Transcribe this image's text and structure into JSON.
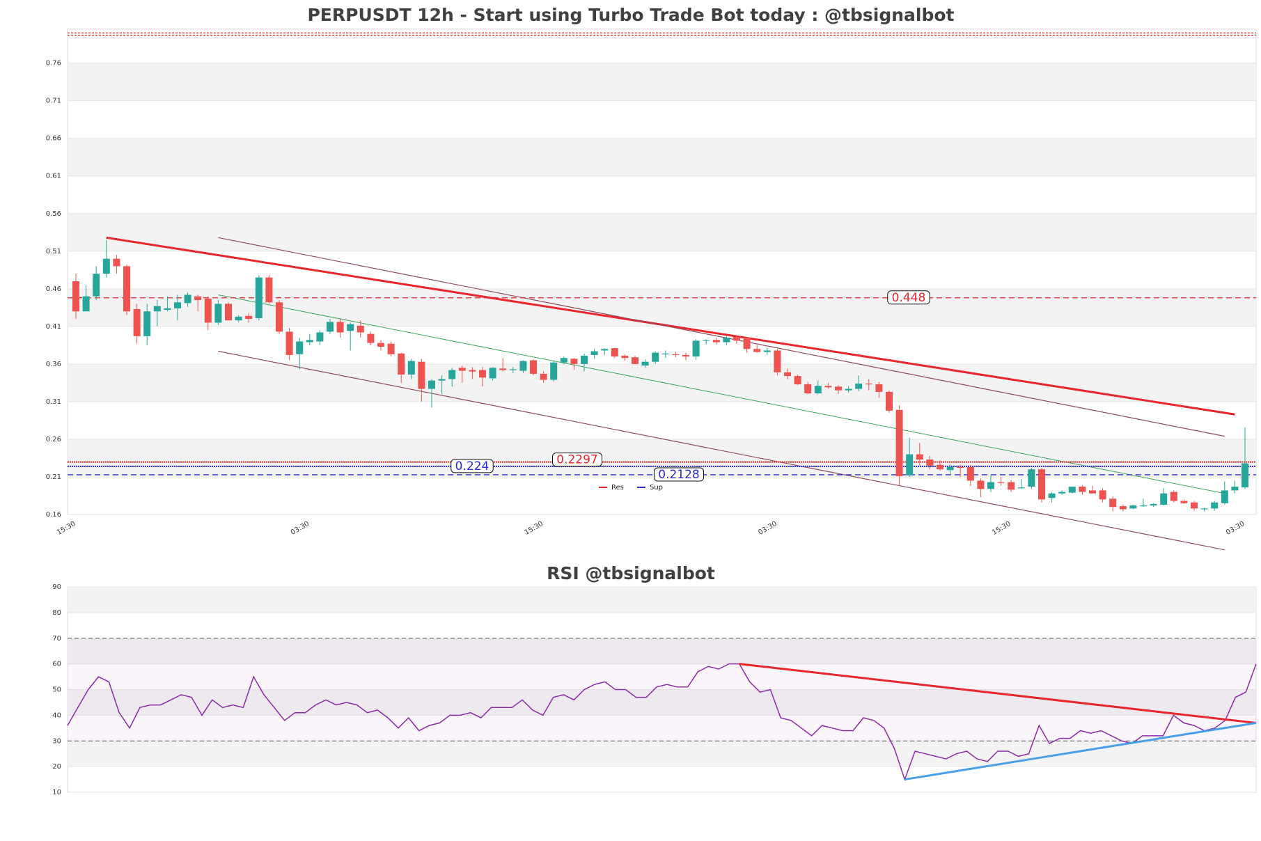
{
  "colors": {
    "bull": "#26a69a",
    "bear": "#ef5350",
    "resistance": "#e8262b",
    "support": "#2b2bd6",
    "rsi_line": "#8b2aa6",
    "rsi_support_trend": "#4aa0e8",
    "channel": "#8b4a5a",
    "mid_channel": "#3aa35a",
    "band": "#f3f3f3"
  },
  "chart_data": [
    {
      "type": "candlestick",
      "title": "PERPUSDT 12h - Start using Turbo Trade Bot today : @tbsignalbot",
      "ylim": [
        0.16,
        0.805
      ],
      "yticks": [
        "0.16",
        "0.21",
        "0.26",
        "0.31",
        "0.36",
        "0.41",
        "0.46",
        "0.51",
        "0.56",
        "0.61",
        "0.66",
        "0.71",
        "0.76"
      ],
      "xticks": [
        "15:30",
        "03:30",
        "15:30",
        "03:30",
        "15:30",
        "03:30"
      ],
      "xtick_index": [
        0,
        23,
        46,
        69,
        92,
        115
      ],
      "candles": [
        [
          0.47,
          0.48,
          0.42,
          0.43
        ],
        [
          0.43,
          0.465,
          0.43,
          0.45
        ],
        [
          0.45,
          0.49,
          0.445,
          0.48
        ],
        [
          0.48,
          0.525,
          0.475,
          0.5
        ],
        [
          0.5,
          0.505,
          0.48,
          0.49
        ],
        [
          0.49,
          0.492,
          0.425,
          0.43
        ],
        [
          0.433,
          0.44,
          0.387,
          0.397
        ],
        [
          0.397,
          0.44,
          0.385,
          0.43
        ],
        [
          0.43,
          0.445,
          0.41,
          0.437
        ],
        [
          0.432,
          0.45,
          0.43,
          0.434
        ],
        [
          0.434,
          0.452,
          0.418,
          0.442
        ],
        [
          0.441,
          0.455,
          0.436,
          0.452
        ],
        [
          0.45,
          0.452,
          0.43,
          0.445
        ],
        [
          0.447,
          0.45,
          0.405,
          0.415
        ],
        [
          0.415,
          0.445,
          0.412,
          0.44
        ],
        [
          0.44,
          0.442,
          0.418,
          0.418
        ],
        [
          0.418,
          0.425,
          0.416,
          0.423
        ],
        [
          0.424,
          0.428,
          0.415,
          0.42
        ],
        [
          0.421,
          0.478,
          0.418,
          0.475
        ],
        [
          0.475,
          0.478,
          0.44,
          0.442
        ],
        [
          0.442,
          0.445,
          0.4,
          0.403
        ],
        [
          0.403,
          0.408,
          0.365,
          0.372
        ],
        [
          0.373,
          0.395,
          0.353,
          0.39
        ],
        [
          0.389,
          0.4,
          0.385,
          0.392
        ],
        [
          0.39,
          0.405,
          0.385,
          0.402
        ],
        [
          0.403,
          0.42,
          0.4,
          0.416
        ],
        [
          0.416,
          0.42,
          0.395,
          0.402
        ],
        [
          0.404,
          0.415,
          0.378,
          0.413
        ],
        [
          0.411,
          0.418,
          0.395,
          0.402
        ],
        [
          0.4,
          0.403,
          0.385,
          0.388
        ],
        [
          0.388,
          0.392,
          0.378,
          0.383
        ],
        [
          0.387,
          0.39,
          0.37,
          0.373
        ],
        [
          0.374,
          0.375,
          0.335,
          0.346
        ],
        [
          0.346,
          0.367,
          0.34,
          0.364
        ],
        [
          0.363,
          0.367,
          0.31,
          0.327
        ],
        [
          0.327,
          0.34,
          0.302,
          0.338
        ],
        [
          0.338,
          0.345,
          0.32,
          0.34
        ],
        [
          0.34,
          0.355,
          0.33,
          0.352
        ],
        [
          0.355,
          0.358,
          0.335,
          0.351
        ],
        [
          0.352,
          0.356,
          0.34,
          0.35
        ],
        [
          0.352,
          0.356,
          0.33,
          0.342
        ],
        [
          0.341,
          0.356,
          0.338,
          0.355
        ],
        [
          0.354,
          0.368,
          0.35,
          0.352
        ],
        [
          0.352,
          0.356,
          0.348,
          0.353
        ],
        [
          0.351,
          0.365,
          0.348,
          0.364
        ],
        [
          0.365,
          0.366,
          0.345,
          0.347
        ],
        [
          0.347,
          0.35,
          0.335,
          0.339
        ],
        [
          0.339,
          0.365,
          0.337,
          0.362
        ],
        [
          0.362,
          0.37,
          0.36,
          0.368
        ],
        [
          0.367,
          0.368,
          0.352,
          0.36
        ],
        [
          0.36,
          0.374,
          0.35,
          0.371
        ],
        [
          0.372,
          0.38,
          0.367,
          0.377
        ],
        [
          0.378,
          0.381,
          0.372,
          0.38
        ],
        [
          0.381,
          0.382,
          0.368,
          0.37
        ],
        [
          0.371,
          0.373,
          0.364,
          0.368
        ],
        [
          0.369,
          0.371,
          0.36,
          0.36
        ],
        [
          0.358,
          0.366,
          0.355,
          0.363
        ],
        [
          0.363,
          0.377,
          0.36,
          0.375
        ],
        [
          0.374,
          0.378,
          0.368,
          0.374
        ],
        [
          0.373,
          0.376,
          0.369,
          0.372
        ],
        [
          0.372,
          0.375,
          0.365,
          0.37
        ],
        [
          0.37,
          0.393,
          0.365,
          0.391
        ],
        [
          0.391,
          0.393,
          0.386,
          0.392
        ],
        [
          0.392,
          0.395,
          0.386,
          0.389
        ],
        [
          0.389,
          0.397,
          0.385,
          0.395
        ],
        [
          0.396,
          0.397,
          0.387,
          0.391
        ],
        [
          0.395,
          0.396,
          0.375,
          0.38
        ],
        [
          0.38,
          0.385,
          0.375,
          0.376
        ],
        [
          0.376,
          0.382,
          0.372,
          0.378
        ],
        [
          0.378,
          0.38,
          0.345,
          0.349
        ],
        [
          0.349,
          0.354,
          0.34,
          0.344
        ],
        [
          0.344,
          0.346,
          0.332,
          0.333
        ],
        [
          0.333,
          0.336,
          0.32,
          0.321
        ],
        [
          0.321,
          0.338,
          0.32,
          0.331
        ],
        [
          0.331,
          0.335,
          0.327,
          0.329
        ],
        [
          0.33,
          0.332,
          0.32,
          0.325
        ],
        [
          0.325,
          0.33,
          0.322,
          0.327
        ],
        [
          0.327,
          0.345,
          0.324,
          0.334
        ],
        [
          0.334,
          0.34,
          0.325,
          0.333
        ],
        [
          0.333,
          0.336,
          0.315,
          0.323
        ],
        [
          0.323,
          0.325,
          0.295,
          0.298
        ],
        [
          0.299,
          0.305,
          0.198,
          0.211
        ],
        [
          0.212,
          0.262,
          0.21,
          0.24
        ],
        [
          0.24,
          0.255,
          0.225,
          0.233
        ],
        [
          0.233,
          0.238,
          0.22,
          0.225
        ],
        [
          0.226,
          0.232,
          0.218,
          0.22
        ],
        [
          0.219,
          0.226,
          0.212,
          0.223
        ],
        [
          0.223,
          0.226,
          0.21,
          0.222
        ],
        [
          0.223,
          0.226,
          0.198,
          0.205
        ],
        [
          0.205,
          0.208,
          0.183,
          0.194
        ],
        [
          0.194,
          0.212,
          0.19,
          0.203
        ],
        [
          0.203,
          0.21,
          0.198,
          0.202
        ],
        [
          0.203,
          0.206,
          0.19,
          0.193
        ],
        [
          0.196,
          0.207,
          0.194,
          0.196
        ],
        [
          0.197,
          0.222,
          0.194,
          0.22
        ],
        [
          0.22,
          0.222,
          0.176,
          0.18
        ],
        [
          0.182,
          0.19,
          0.176,
          0.188
        ],
        [
          0.188,
          0.192,
          0.186,
          0.19
        ],
        [
          0.189,
          0.196,
          0.188,
          0.197
        ],
        [
          0.197,
          0.199,
          0.186,
          0.19
        ],
        [
          0.192,
          0.198,
          0.188,
          0.188
        ],
        [
          0.192,
          0.195,
          0.176,
          0.18
        ],
        [
          0.181,
          0.184,
          0.164,
          0.17
        ],
        [
          0.171,
          0.173,
          0.164,
          0.167
        ],
        [
          0.168,
          0.173,
          0.167,
          0.172
        ],
        [
          0.171,
          0.181,
          0.17,
          0.172
        ],
        [
          0.172,
          0.175,
          0.17,
          0.174
        ],
        [
          0.173,
          0.195,
          0.172,
          0.188
        ],
        [
          0.19,
          0.192,
          0.176,
          0.178
        ],
        [
          0.178,
          0.18,
          0.174,
          0.175
        ],
        [
          0.176,
          0.178,
          0.165,
          0.168
        ],
        [
          0.167,
          0.169,
          0.164,
          0.168
        ],
        [
          0.168,
          0.178,
          0.165,
          0.176
        ],
        [
          0.175,
          0.204,
          0.173,
          0.192
        ],
        [
          0.192,
          0.205,
          0.188,
          0.197
        ],
        [
          0.196,
          0.276,
          0.194,
          0.228
        ]
      ],
      "levels": [
        {
          "value": 0.448,
          "label": "0.448",
          "kind": "resistance"
        },
        {
          "value": 0.2297,
          "label": "0.2297",
          "kind": "resistance"
        },
        {
          "value": 0.224,
          "label": "0.224",
          "kind": "support"
        },
        {
          "value": 0.2128,
          "label": "0.2128",
          "kind": "support"
        }
      ],
      "legend": [
        {
          "name": "Res",
          "color": "#e8262b"
        },
        {
          "name": "Sup",
          "color": "#2b2bd6"
        }
      ],
      "trendlines": [
        {
          "from": [
            3,
            0.528
          ],
          "to": [
            114,
            0.293
          ],
          "kind": "resistance"
        },
        {
          "from": [
            14,
            0.528
          ],
          "to": [
            113,
            0.264
          ],
          "kind": "channel"
        },
        {
          "from": [
            14,
            0.377
          ],
          "to": [
            113,
            0.113
          ],
          "kind": "channel"
        },
        {
          "from": [
            14,
            0.452
          ],
          "to": [
            113,
            0.188
          ],
          "kind": "mid_channel"
        }
      ]
    },
    {
      "type": "line",
      "title": "RSI @tbsignalbot",
      "ylim": [
        10,
        90
      ],
      "yticks": [
        "10",
        "20",
        "30",
        "40",
        "50",
        "60",
        "70",
        "80",
        "90"
      ],
      "overbought": 70,
      "oversold": 30,
      "values": [
        36,
        43,
        50,
        55,
        53,
        41,
        35,
        43,
        44,
        44,
        46,
        48,
        47,
        40,
        46,
        43,
        44,
        43,
        55,
        48,
        43,
        38,
        41,
        41,
        44,
        46,
        44,
        45,
        44,
        41,
        42,
        39,
        35,
        39,
        34,
        36,
        37,
        40,
        40,
        41,
        39,
        43,
        43,
        43,
        46,
        42,
        40,
        47,
        48,
        46,
        50,
        52,
        53,
        50,
        50,
        47,
        47,
        51,
        52,
        51,
        51,
        57,
        59,
        58,
        60,
        60,
        53,
        49,
        50,
        39,
        38,
        35,
        32,
        36,
        35,
        34,
        34,
        39,
        38,
        35,
        27,
        15,
        26,
        25,
        24,
        23,
        25,
        26,
        23,
        22,
        26,
        26,
        24,
        25,
        36,
        29,
        31,
        31,
        34,
        33,
        34,
        32,
        30,
        29,
        32,
        32,
        32,
        40,
        37,
        36,
        34,
        35,
        38,
        47,
        49,
        60
      ],
      "trendlines": [
        {
          "from": [
            65,
            60
          ],
          "to": [
            115,
            37
          ],
          "kind": "resistance"
        },
        {
          "from": [
            81,
            15
          ],
          "to": [
            115,
            37
          ],
          "kind": "rsi_support"
        }
      ]
    }
  ]
}
